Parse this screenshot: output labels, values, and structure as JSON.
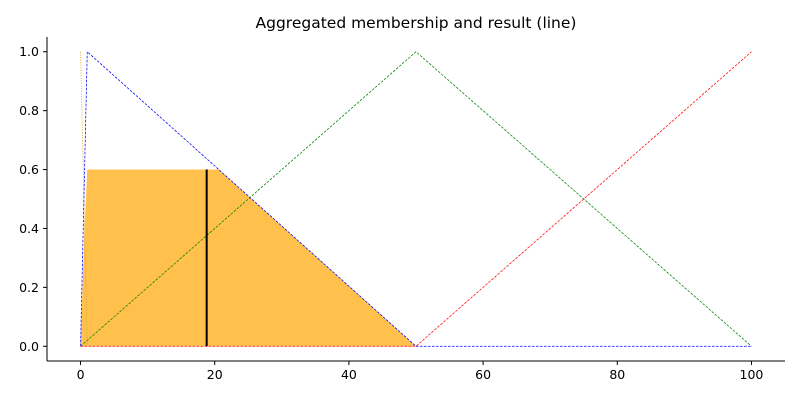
{
  "chart_data": {
    "type": "line",
    "title": "Aggregated membership and result (line)",
    "xlabel": "",
    "ylabel": "",
    "xlim": [
      -5,
      105
    ],
    "ylim": [
      -0.05,
      1.05
    ],
    "x_ticks": [
      0,
      20,
      40,
      60,
      80,
      100
    ],
    "y_ticks": [
      0.0,
      0.2,
      0.4,
      0.6,
      0.8,
      1.0
    ],
    "x_tick_labels": [
      "0",
      "20",
      "40",
      "60",
      "80",
      "100"
    ],
    "y_tick_labels": [
      "0.0",
      "0.2",
      "0.4",
      "0.6",
      "0.8",
      "1.0"
    ],
    "grid": false,
    "series": [
      {
        "color": "#DAA520",
        "style": "dotted",
        "x": [
          0,
          1
        ],
        "y": [
          1.0,
          0.0
        ]
      },
      {
        "color": "#0000FF",
        "style": "dashed",
        "x": [
          0,
          1,
          50,
          100
        ],
        "y": [
          0.0,
          1.0,
          0.0,
          0.0
        ]
      },
      {
        "color": "#008000",
        "style": "dashed",
        "x": [
          0,
          50,
          100
        ],
        "y": [
          0.0,
          1.0,
          0.0
        ]
      },
      {
        "color": "#FF0000",
        "style": "dashed",
        "x": [
          0,
          50,
          100
        ],
        "y": [
          0.0,
          0.0,
          1.0
        ]
      }
    ],
    "aggregated_fill": {
      "color": "#FFA500",
      "opacity": 0.7,
      "x": [
        0,
        0.6,
        1,
        20.6,
        50
      ],
      "y": [
        0.0,
        0.4,
        0.6,
        0.6,
        0.0
      ]
    },
    "result_line": {
      "color": "#000000",
      "x": 18.8,
      "y_from": 0.0,
      "y_to": 0.6
    }
  }
}
